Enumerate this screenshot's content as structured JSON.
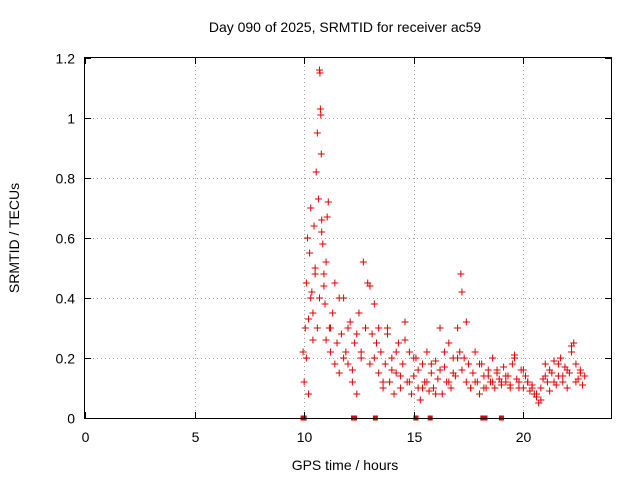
{
  "chart_data": {
    "type": "scatter",
    "title": "Day 090 of 2025, SRMTID for receiver ac59",
    "xlabel": "GPS time / hours",
    "ylabel": "SRMTID / TECUs",
    "xlim": [
      0,
      24
    ],
    "ylim": [
      0,
      1.2
    ],
    "xticks": [
      0,
      5,
      10,
      15,
      20
    ],
    "xtick_labels": [
      "0",
      "5",
      "10",
      "15",
      "20"
    ],
    "yticks": [
      0,
      0.2,
      0.4,
      0.6,
      0.8,
      1.0,
      1.2
    ],
    "ytick_labels": [
      "0",
      "0.2",
      "0.4",
      "0.6",
      "0.8",
      "1",
      "1.2"
    ],
    "grid": true,
    "marker": "+",
    "color": "#e00000",
    "series": [
      {
        "name": "SRMTID",
        "x": [
          9.95,
          10.0,
          10.05,
          10.1,
          10.15,
          10.2,
          10.25,
          10.3,
          10.35,
          10.4,
          10.45,
          10.5,
          10.55,
          10.6,
          10.65,
          10.7,
          10.72,
          10.74,
          10.76,
          10.78,
          10.8,
          10.85,
          10.9,
          10.95,
          11.0,
          11.05,
          11.1,
          11.15,
          11.2,
          11.3,
          11.4,
          11.5,
          11.6,
          11.7,
          11.8,
          11.9,
          12.0,
          12.1,
          12.2,
          12.3,
          12.4,
          12.5,
          12.6,
          12.7,
          12.8,
          12.9,
          13.0,
          13.1,
          13.2,
          13.3,
          13.4,
          13.5,
          13.6,
          13.7,
          13.8,
          13.9,
          14.0,
          14.1,
          14.2,
          14.3,
          14.4,
          14.5,
          14.6,
          14.7,
          14.8,
          14.9,
          15.0,
          15.1,
          15.2,
          15.3,
          15.4,
          15.5,
          15.6,
          15.7,
          15.8,
          15.9,
          16.0,
          16.1,
          16.2,
          16.3,
          16.4,
          16.5,
          16.6,
          16.7,
          16.8,
          16.9,
          17.0,
          17.1,
          17.15,
          17.2,
          17.3,
          17.4,
          17.5,
          17.6,
          17.7,
          17.8,
          17.9,
          18.0,
          18.1,
          18.2,
          18.3,
          18.4,
          18.5,
          18.6,
          18.7,
          18.8,
          18.9,
          19.0,
          19.1,
          19.2,
          19.3,
          19.4,
          19.5,
          19.6,
          19.7,
          19.8,
          19.9,
          20.0,
          20.1,
          20.2,
          20.3,
          20.4,
          20.5,
          20.6,
          20.7,
          20.8,
          20.9,
          21.0,
          21.1,
          21.2,
          21.3,
          21.4,
          21.5,
          21.6,
          21.7,
          21.8,
          21.9,
          22.0,
          22.1,
          22.2,
          22.3,
          22.4,
          22.5,
          22.6,
          22.7,
          22.8,
          10.1,
          10.2,
          10.3,
          10.4,
          10.5,
          10.6,
          10.7,
          10.8,
          10.9,
          11.0,
          11.2,
          11.4,
          11.6,
          11.8,
          12.0,
          12.2,
          12.4,
          12.6,
          12.8,
          13.0,
          13.2,
          13.4,
          13.6,
          13.8,
          14.0,
          14.2,
          14.4,
          14.6,
          14.8,
          15.0,
          15.2,
          15.4,
          15.6,
          15.8,
          16.0,
          16.2,
          16.4,
          16.6,
          16.8,
          17.0,
          17.2,
          17.4,
          17.6,
          17.8,
          18.0,
          18.2,
          18.4,
          18.6,
          18.8,
          19.0,
          19.2,
          19.4,
          19.6,
          19.8,
          20.0,
          20.2,
          20.4,
          20.6,
          20.8,
          21.0,
          21.2,
          21.4,
          21.6,
          21.8,
          22.0,
          22.2,
          22.4,
          22.6
        ],
        "y": [
          0.22,
          0.12,
          0.3,
          0.45,
          0.6,
          0.33,
          0.55,
          0.7,
          0.42,
          0.35,
          0.64,
          0.5,
          0.82,
          0.95,
          0.73,
          1.16,
          1.15,
          1.03,
          1.01,
          0.88,
          0.66,
          0.58,
          0.48,
          0.38,
          0.52,
          0.67,
          0.72,
          0.3,
          0.22,
          0.35,
          0.45,
          0.25,
          0.15,
          0.28,
          0.4,
          0.22,
          0.18,
          0.32,
          0.12,
          0.25,
          0.08,
          0.35,
          0.2,
          0.52,
          0.3,
          0.45,
          0.18,
          0.28,
          0.38,
          0.25,
          0.15,
          0.22,
          0.1,
          0.18,
          0.3,
          0.12,
          0.2,
          0.08,
          0.15,
          0.25,
          0.1,
          0.18,
          0.32,
          0.12,
          0.22,
          0.08,
          0.14,
          0.2,
          0.1,
          0.06,
          0.18,
          0.12,
          0.22,
          0.09,
          0.15,
          0.1,
          0.19,
          0.13,
          0.3,
          0.08,
          0.17,
          0.12,
          0.25,
          0.1,
          0.2,
          0.14,
          0.3,
          0.22,
          0.48,
          0.42,
          0.2,
          0.12,
          0.18,
          0.1,
          0.15,
          0.22,
          0.12,
          0.08,
          0.18,
          0.14,
          0.1,
          0.16,
          0.12,
          0.2,
          0.1,
          0.15,
          0.13,
          0.11,
          0.17,
          0.12,
          0.14,
          0.1,
          0.18,
          0.21,
          0.13,
          0.12,
          0.16,
          0.1,
          0.14,
          0.12,
          0.09,
          0.11,
          0.08,
          0.07,
          0.05,
          0.1,
          0.13,
          0.18,
          0.12,
          0.09,
          0.15,
          0.19,
          0.11,
          0.14,
          0.2,
          0.12,
          0.17,
          0.1,
          0.15,
          0.22,
          0.25,
          0.18,
          0.13,
          0.16,
          0.11,
          0.14,
          0.2,
          0.08,
          0.4,
          0.26,
          0.48,
          0.3,
          0.4,
          0.62,
          0.44,
          0.26,
          0.3,
          0.18,
          0.4,
          0.2,
          0.3,
          0.16,
          0.28,
          0.22,
          0.3,
          0.44,
          0.2,
          0.3,
          0.12,
          0.28,
          0.16,
          0.22,
          0.14,
          0.26,
          0.12,
          0.2,
          0.16,
          0.1,
          0.12,
          0.18,
          0.08,
          0.16,
          0.22,
          0.12,
          0.15,
          0.2,
          0.16,
          0.32,
          0.1,
          0.12,
          0.18,
          0.1,
          0.14,
          0.12,
          0.16,
          0.12,
          0.14,
          0.11,
          0.2,
          0.1,
          0.16,
          0.12,
          0.1,
          0.08,
          0.06,
          0.14,
          0.16,
          0.12,
          0.18,
          0.14,
          0.16,
          0.24,
          0.12,
          0.15
        ]
      }
    ],
    "gap_markers_x": [
      9.95,
      10.0,
      12.25,
      12.3,
      13.25,
      15.1,
      15.75,
      18.15,
      18.25,
      19.0
    ]
  }
}
